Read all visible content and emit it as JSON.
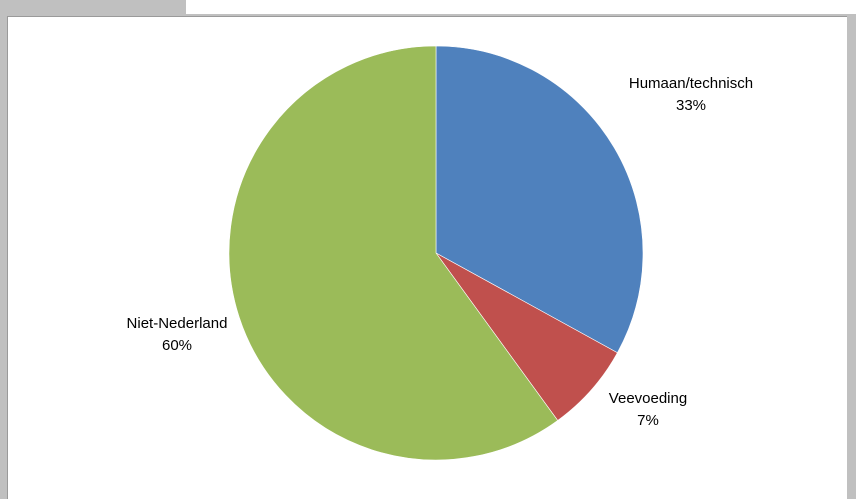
{
  "chart_data": {
    "type": "pie",
    "title": "",
    "slices": [
      {
        "label": "Humaan/technisch",
        "value": 33,
        "pct_label": "33%",
        "color": "#4f81bd"
      },
      {
        "label": "Veevoeding",
        "value": 7,
        "pct_label": "7%",
        "color": "#c0504d"
      },
      {
        "label": "Niet-Nederland",
        "value": 60,
        "pct_label": "60%",
        "color": "#9bbb59"
      }
    ],
    "start_angle_deg": 0,
    "direction": "clockwise",
    "legend": "none"
  }
}
